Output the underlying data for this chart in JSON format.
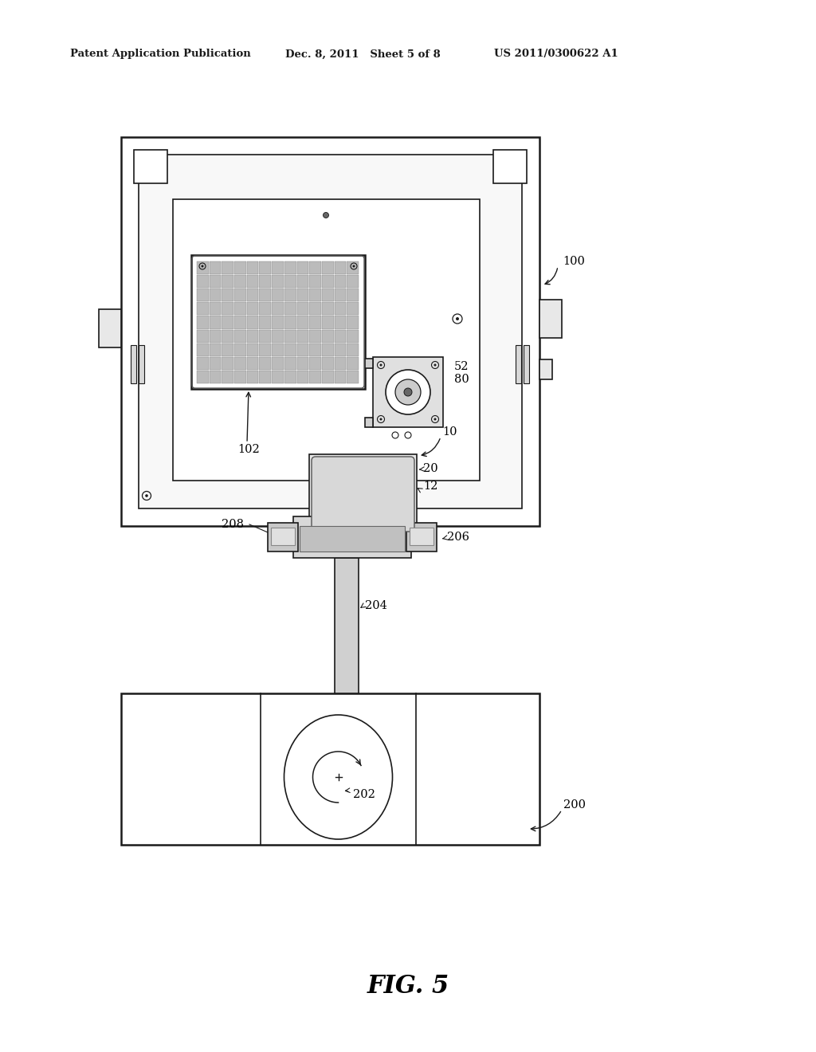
{
  "bg_color": "#ffffff",
  "header_left": "Patent Application Publication",
  "header_mid": "Dec. 8, 2011   Sheet 5 of 8",
  "header_right": "US 2011/0300622 A1",
  "figure_label": "FIG. 5",
  "line_color": "#1a1a1a",
  "fill_light": "#f5f5f5",
  "fill_mid": "#e0e0e0",
  "fill_dark": "#c8c8c8"
}
